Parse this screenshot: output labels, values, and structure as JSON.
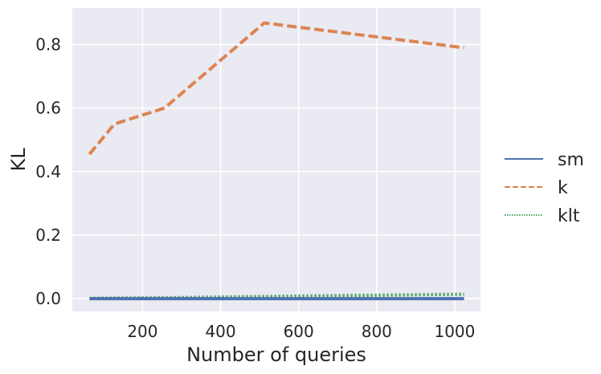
{
  "chart_data": {
    "type": "line",
    "title": "",
    "xlabel": "Number of queries",
    "ylabel": "KL",
    "xlim": [
      20,
      1066
    ],
    "ylim": [
      -0.04,
      0.915
    ],
    "xticks": [
      200,
      400,
      600,
      800,
      1000
    ],
    "xtick_labels": [
      "200",
      "400",
      "600",
      "800",
      "1000"
    ],
    "yticks": [
      0.0,
      0.2,
      0.4,
      0.6,
      0.8
    ],
    "ytick_labels": [
      "0.0",
      "0.2",
      "0.4",
      "0.6",
      "0.8"
    ],
    "grid": true,
    "legend_position": "right",
    "x": [
      64,
      128,
      256,
      512,
      1024
    ],
    "series": [
      {
        "name": "sm",
        "values": [
          0.0,
          0.0,
          0.0,
          0.0,
          0.0
        ],
        "color": "#4c72b0",
        "style": "solid"
      },
      {
        "name": "k",
        "values": [
          0.455,
          0.55,
          0.6,
          0.868,
          0.79
        ],
        "color": "#dd8452",
        "style": "dashed"
      },
      {
        "name": "klt",
        "values": [
          0.001,
          0.002,
          0.003,
          0.007,
          0.014
        ],
        "color": "#55a868",
        "style": "dotted"
      }
    ]
  },
  "colors": {
    "plot_background": "#eaeaf2",
    "grid": "#ffffff",
    "text": "#262626"
  }
}
